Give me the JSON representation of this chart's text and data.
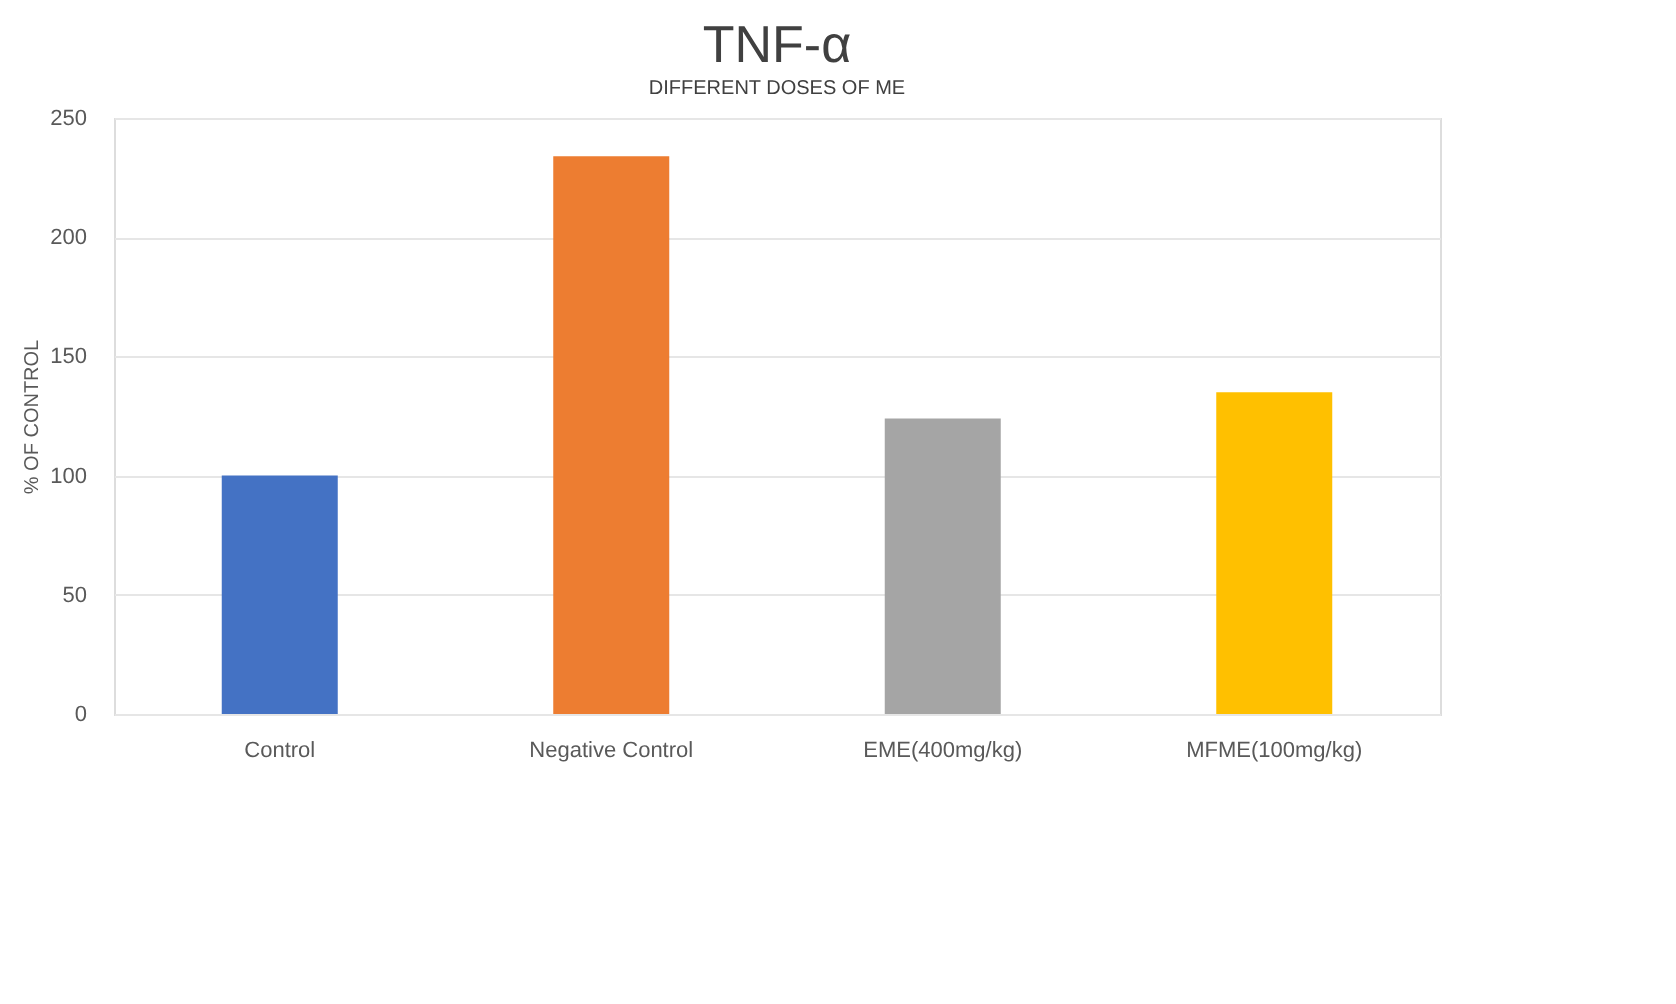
{
  "chart_data": {
    "type": "bar",
    "title": "TNF-α",
    "subtitle": "DIFFERENT DOSES OF ME",
    "ylabel": "% OF CONTROL",
    "categories": [
      "Control",
      "Negative Control",
      "EME(400mg/kg)",
      "MFME(100mg/kg)"
    ],
    "values": [
      100,
      234,
      124,
      135
    ],
    "colors": [
      "#4472c4",
      "#ed7d31",
      "#a5a5a5",
      "#ffc000"
    ],
    "ylim": [
      0,
      250
    ],
    "yticks": [
      0,
      50,
      100,
      150,
      200,
      250
    ],
    "grid": "y"
  }
}
